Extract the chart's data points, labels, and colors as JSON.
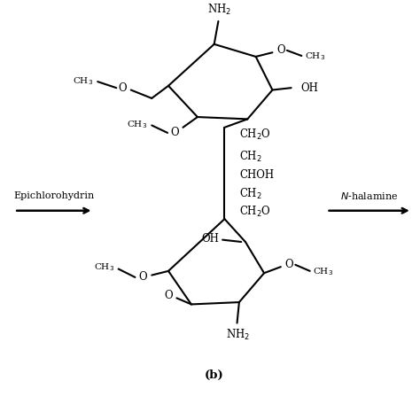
{
  "background_color": "#ffffff",
  "title_label": "(b)",
  "left_arrow_label": "Epichlorohydrin",
  "right_arrow_label": "N-halamine",
  "fig_width": 4.74,
  "fig_height": 4.74,
  "dpi": 100
}
